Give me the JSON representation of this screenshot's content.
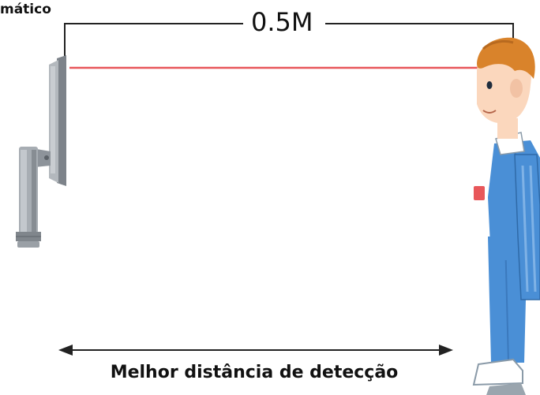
{
  "diagram": {
    "top_left_label": "mático",
    "distance_label": "0.5M",
    "bottom_caption": "Melhor distância de detecção"
  },
  "colors": {
    "beam": "#e8575a",
    "suit": "#4a8fd6",
    "hair": "#d9832b",
    "skin": "#fbd7bd",
    "device": "#9aa0a6"
  }
}
